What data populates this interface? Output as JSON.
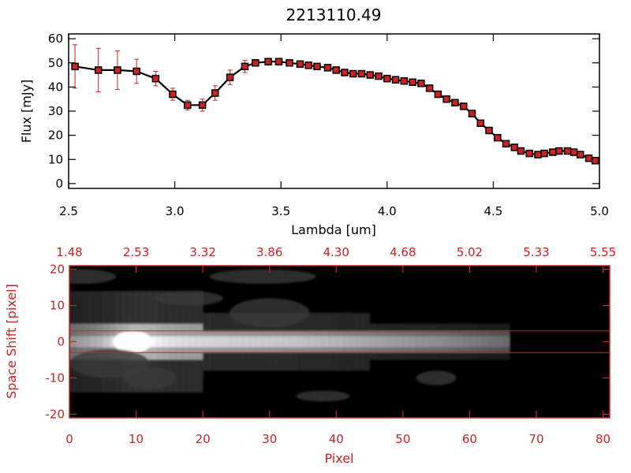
{
  "chart_data": [
    {
      "type": "line",
      "title": "2213110.49",
      "xlabel": "Lambda [um]",
      "ylabel": "Flux [mJy]",
      "xlim": [
        2.5,
        5.0
      ],
      "ylim": [
        -2,
        62
      ],
      "x_ticks": [
        "2.5",
        "3.0",
        "3.5",
        "4.0",
        "4.5",
        "5.0"
      ],
      "y_ticks": [
        "0",
        "10",
        "20",
        "30",
        "40",
        "50",
        "60"
      ],
      "grid": false,
      "legend": "none",
      "series": [
        {
          "x": [
            2.53,
            2.64,
            2.73,
            2.82,
            2.91,
            2.99,
            3.06,
            3.13,
            3.19,
            3.26,
            3.33,
            3.38,
            3.44,
            3.49,
            3.54,
            3.59,
            3.63,
            3.67,
            3.72,
            3.76,
            3.8,
            3.84,
            3.88,
            3.92,
            3.96,
            4.0,
            4.04,
            4.08,
            4.12,
            4.16,
            4.2,
            4.24,
            4.28,
            4.32,
            4.36,
            4.4,
            4.44,
            4.48,
            4.52,
            4.56,
            4.6,
            4.63,
            4.67,
            4.71,
            4.74,
            4.78,
            4.81,
            4.85,
            4.88,
            4.91,
            4.95,
            4.98
          ],
          "y": [
            48.5,
            47,
            47,
            46.5,
            43.5,
            37,
            32.5,
            32.5,
            37.5,
            44,
            48.5,
            50,
            50.5,
            50.5,
            50,
            49.5,
            49,
            48.5,
            48,
            47,
            46,
            45.5,
            45.5,
            45,
            44.5,
            43.5,
            43,
            42.5,
            42,
            41.5,
            39.5,
            37,
            35,
            33.5,
            32,
            29,
            25,
            22,
            19,
            16.5,
            15,
            13.5,
            12.5,
            12,
            12.5,
            13,
            13.5,
            13.5,
            13,
            12,
            10.5,
            9.5
          ],
          "yerr": [
            9,
            9,
            8,
            5,
            3,
            2.5,
            2,
            2.5,
            3,
            3,
            2.5,
            1,
            1,
            1,
            1,
            1,
            1,
            1,
            1,
            1,
            1,
            1,
            1,
            1,
            1,
            1,
            1,
            1,
            1,
            1,
            1,
            1,
            1,
            1,
            1,
            1,
            1,
            1,
            1,
            1,
            1,
            1,
            1,
            1,
            1,
            1,
            1,
            1,
            1,
            1,
            1,
            1
          ],
          "color": "#000000",
          "marker_color": "#cc2222",
          "errorbar_color": "#cc2222"
        }
      ]
    },
    {
      "type": "heatmap",
      "xlabel": "Pixel",
      "ylabel": "Space Shift [pixel]",
      "xlim": [
        0,
        81
      ],
      "ylim": [
        -21,
        21
      ],
      "x_ticks": [
        "0",
        "10",
        "20",
        "30",
        "40",
        "50",
        "60",
        "70",
        "80"
      ],
      "y_ticks": [
        "-20",
        "-10",
        "0",
        "10",
        "20"
      ],
      "top_axis_ticks": [
        "1.48",
        "2.53",
        "3.32",
        "3.86",
        "4.30",
        "4.68",
        "5.02",
        "5.33",
        "5.55"
      ],
      "extraction_aperture_rows": [
        -3,
        3
      ],
      "colormap": "grayscale",
      "axis_color": "#cc2222",
      "aperture_line_color": "#cc2222",
      "emission_profile": {
        "pixels": [
          0,
          4,
          7,
          9,
          10,
          12,
          14,
          16,
          20,
          25,
          30,
          35,
          40,
          45,
          50,
          55,
          60,
          65,
          66
        ],
        "peak_intensity": [
          0.35,
          0.55,
          0.85,
          1.0,
          1.0,
          0.95,
          0.85,
          0.8,
          0.75,
          0.7,
          0.68,
          0.62,
          0.55,
          0.45,
          0.38,
          0.3,
          0.2,
          0.1,
          0.0
        ]
      }
    }
  ]
}
